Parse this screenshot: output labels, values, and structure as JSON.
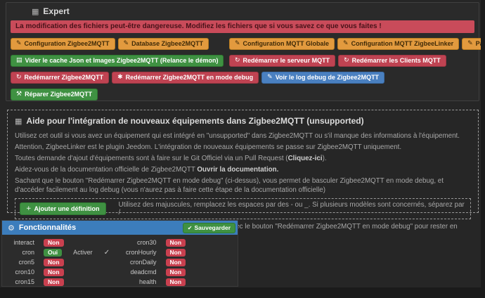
{
  "expert": {
    "title": "Expert",
    "title_icon": "▦",
    "alert": "La modification des fichiers peut-être dangereuse. Modifiez les fichiers que si vous savez ce que vous faites !",
    "buttons": {
      "config_z2m": {
        "icon": "✎",
        "label": "Configuration Zigbee2MQTT"
      },
      "database_z2m": {
        "icon": "✎",
        "label": "Database Zigbee2MQTT"
      },
      "config_mqtt_globale": {
        "icon": "✎",
        "label": "Configuration MQTT Globale"
      },
      "config_mqtt_zigbeelinker": {
        "icon": "✎",
        "label": "Configuration MQTT ZigbeeLinker"
      },
      "password_mqtt": {
        "icon": "✎",
        "label": "Password MQTT"
      },
      "vider_cache": {
        "icon": "▤",
        "label": "Vider le cache Json et Images Zigbee2MQTT (Relance le démon)"
      },
      "restart_server": {
        "icon": "↻",
        "label": "Redémarrer le serveur MQTT"
      },
      "restart_clients": {
        "icon": "↻",
        "label": "Redémarrer les Clients MQTT"
      },
      "restart_z2m": {
        "icon": "↻",
        "label": "Redémarrer Zigbee2MQTT"
      },
      "restart_debug": {
        "icon": "✱",
        "label": "Redémarrer Zigbee2MQTT en mode debug"
      },
      "view_log": {
        "icon": "✎",
        "label": "Voir le log debug de Zigbee2MQTT"
      },
      "repair": {
        "icon": "⚒",
        "label": "Réparer Zigbee2MQTT"
      }
    }
  },
  "help": {
    "title": "Aide pour l'intégration de nouveaux équipements dans Zigbee2MQTT (unsupported)",
    "title_icon": "▦",
    "line1": "Utilisez cet outil si vous avez un équipement qui est intégré en \"unsupported\" dans Zigbee2MQTT ou s'il manque des informations à l'équipement.",
    "line2": "Attention, ZigbeeLinker est le plugin Jeedom. L'intégration de nouveaux équipements se passe sur Zigbee2MQTT uniquement.",
    "line3_text": "Toutes demande d'ajout d'équipements sont à faire sur le Git Officiel via un Pull Request (",
    "line3_link": "Cliquez-ici",
    "line3_suffix": ").",
    "line4_text": "Aidez-vous de la documentation officielle de Zigbee2MQTT ",
    "line4_link": "Ouvrir la documentation.",
    "line5": "Sachant que le bouton \"Redémarrer Zigbee2MQTT en mode debug\" (ci-dessus), vous permet de basculer Zigbee2MQTT en mode debug, et d'accéder facilement au log debug (vous n'aurez pas à faire cette étape de la documentation officielle)",
    "add_button": {
      "icon": "+",
      "label": "Ajouter une définition"
    },
    "hint": "Utilisez des majuscules, remplacez les espaces par des - ou _. Si plusieurs modèles sont concernés, séparez par /",
    "note": "Après modification, ajout, suppression, pensez à redémarrer le plugin avec le bouton \"Redémarrer Zigbee2MQTT en mode debug\" pour rester en mode debug, ou le bouton (flèche) dans la partie \"Démon\"."
  },
  "features": {
    "title": "Fonctionnalités",
    "title_icon": "⚙",
    "save_button": {
      "icon": "✔",
      "label": "Sauvegarder"
    },
    "activer_label": "Activer",
    "check_glyph": "✓",
    "left_rows": [
      {
        "label": "interact",
        "value": "Non"
      },
      {
        "label": "cron",
        "value": "Oui"
      },
      {
        "label": "cron5",
        "value": "Non"
      },
      {
        "label": "cron10",
        "value": "Non"
      },
      {
        "label": "cron15",
        "value": "Non"
      }
    ],
    "right_rows": [
      {
        "label": "cron30",
        "value": "Non"
      },
      {
        "label": "cronHourly",
        "value": "Non"
      },
      {
        "label": "cronDaily",
        "value": "Non"
      },
      {
        "label": "deadcmd",
        "value": "Non"
      },
      {
        "label": "health",
        "value": "Non"
      }
    ]
  },
  "colors": {
    "page_bg": "#262626",
    "panel_bg": "#2a2a2a",
    "alert_bg": "#c94b5a",
    "warning": "#e29a3e",
    "danger": "#bf4352",
    "success": "#3f9142",
    "info": "#4a80c0",
    "header_blue": "#3c7dbc",
    "badge_red": "#c9404f",
    "badge_green": "#3f9142"
  }
}
